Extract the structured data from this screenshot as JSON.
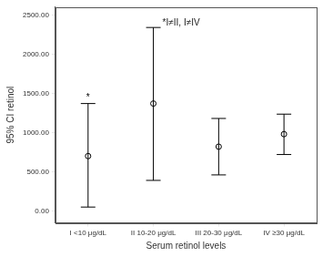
{
  "chart_data": {
    "type": "errorbar",
    "xlabel": "Serum retinol levels",
    "ylabel": "95% CI retinol",
    "categories": [
      "I <10 μg/dL",
      "II 10-20 μg/dL",
      "III 20-30 μg/dL",
      "IV ≥30 μg/dL"
    ],
    "values": [
      700,
      1370,
      820,
      980
    ],
    "error_low": [
      50,
      390,
      460,
      720
    ],
    "error_high": [
      1370,
      2340,
      1180,
      1235
    ],
    "marks": [
      "*",
      null,
      null,
      null
    ],
    "annotations": [
      "*I≠II, I≠IV"
    ],
    "ylim": [
      -150,
      2600
    ],
    "yticks": [
      {
        "value": 0,
        "label": "0.00"
      },
      {
        "value": 500,
        "label": "500.00"
      },
      {
        "value": 1000,
        "label": "1000.00"
      },
      {
        "value": 1500,
        "label": "1500.00"
      },
      {
        "value": 2000,
        "label": "2000.00"
      },
      {
        "value": 2500,
        "label": "2500.00"
      }
    ],
    "grid": false,
    "marker": "circle",
    "color": "#000000"
  }
}
